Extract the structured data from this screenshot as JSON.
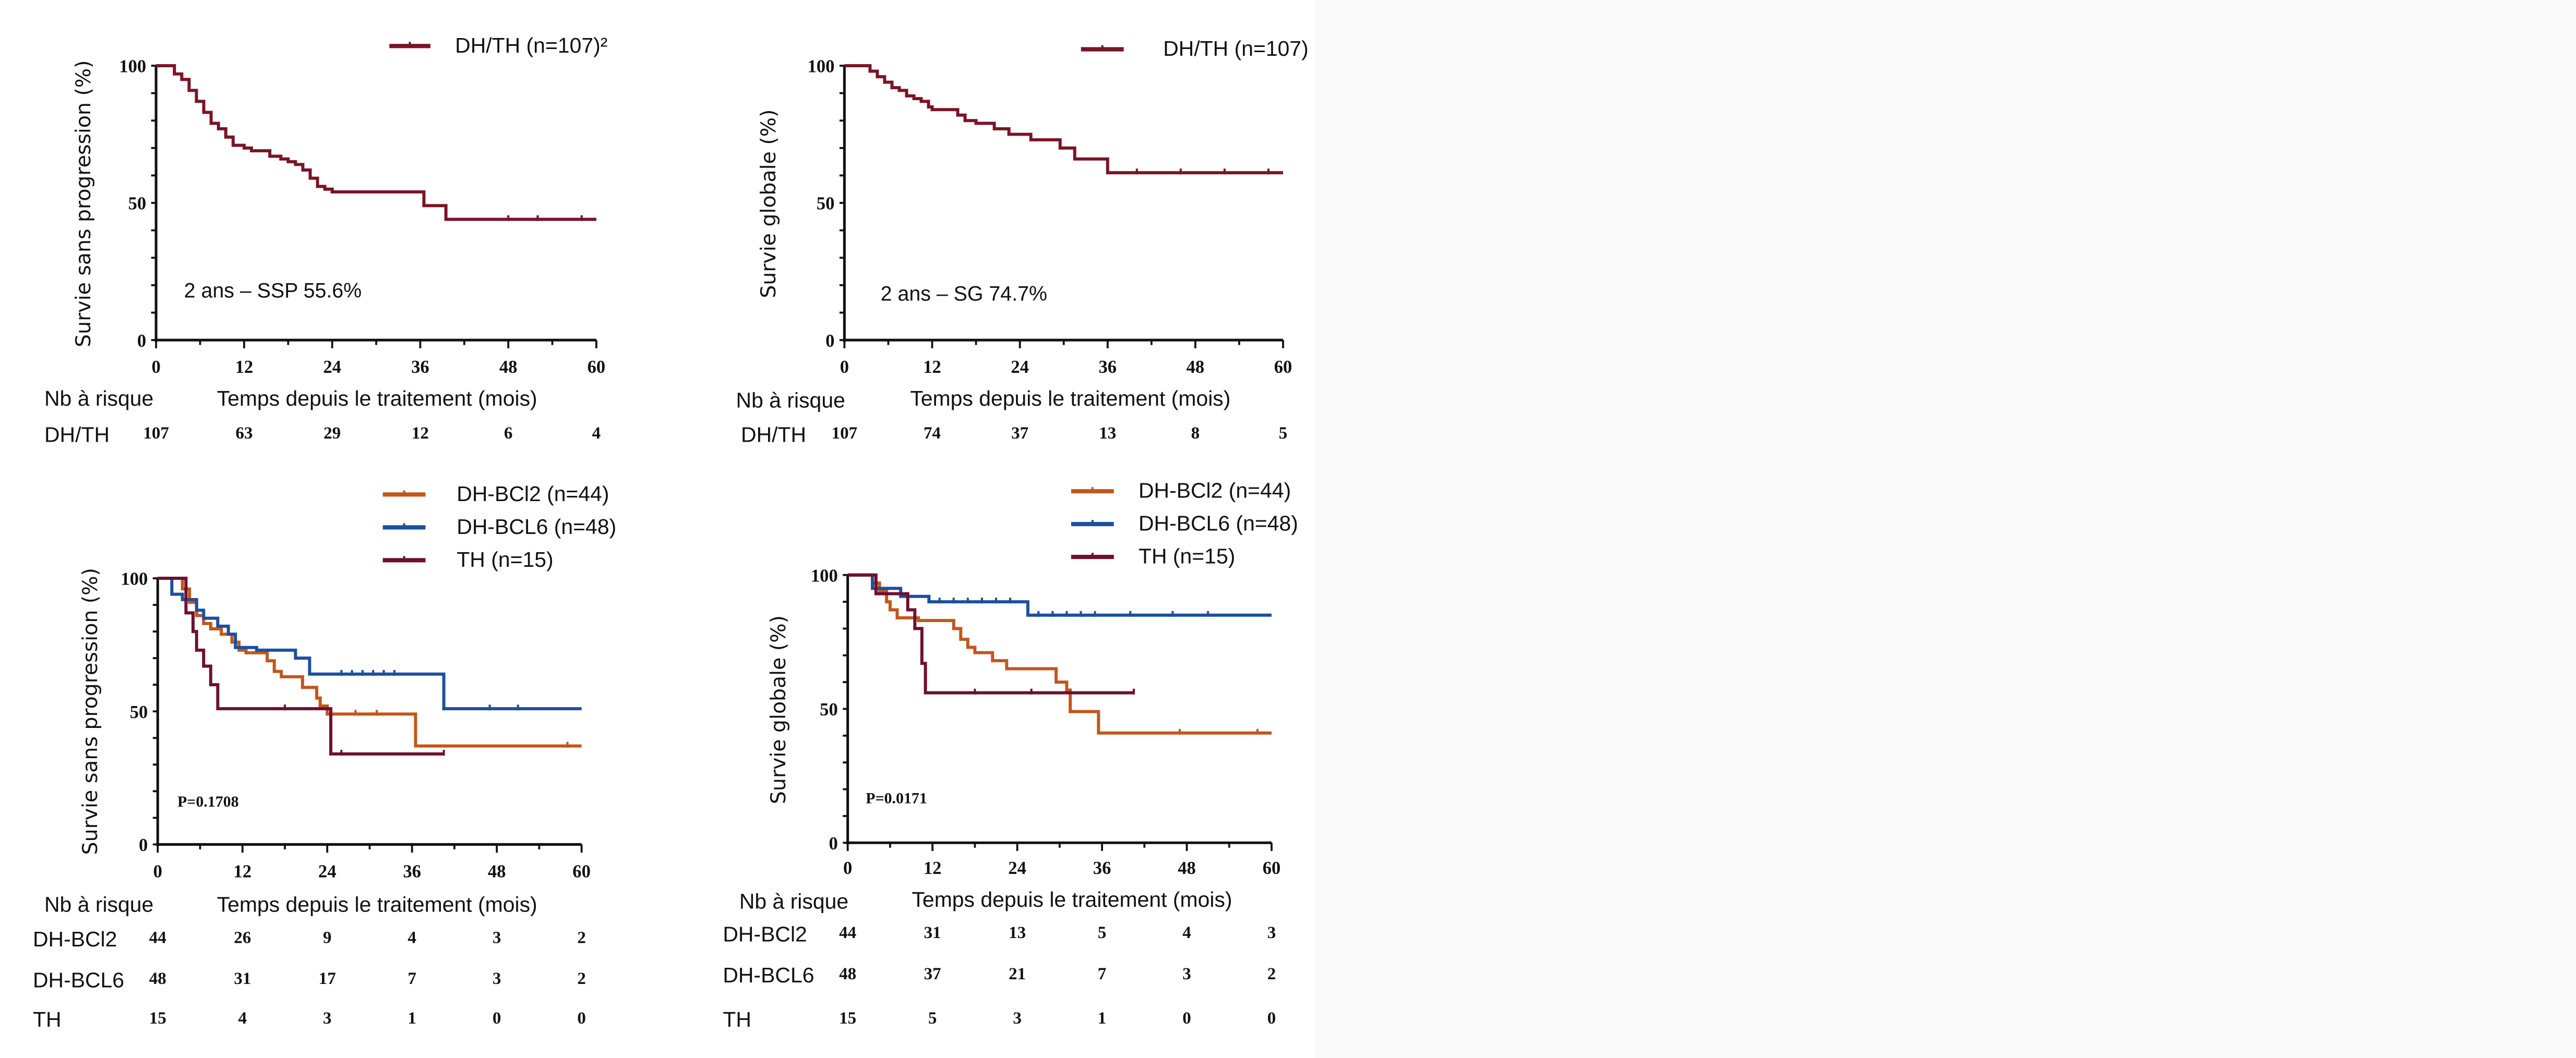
{
  "chart_data": [
    {
      "id": "tl",
      "type": "line",
      "subtype": "kaplan-meier",
      "title": "",
      "ylabel": "Survie sans progression (%)",
      "xlabel": "Temps depuis le traitement (mois)",
      "xlim": [
        0,
        60
      ],
      "ylim": [
        0,
        100
      ],
      "xticks": [
        "0",
        "12",
        "24",
        "36",
        "48",
        "60"
      ],
      "yticks": [
        "0",
        "50",
        "100"
      ],
      "grid": false,
      "legend_position": "top-right",
      "annotation": "2 ans – SSP 55.6%",
      "risk_header": "Nb à risque",
      "series": [
        {
          "name": "DH/TH (n=107)²",
          "risk_label": "DH/TH",
          "color": "#7a1426",
          "at_risk": [
            "107",
            "63",
            "29",
            "12",
            "6",
            "4"
          ],
          "points": [
            [
              0,
              100
            ],
            [
              2,
              100
            ],
            [
              2.5,
              97
            ],
            [
              3.5,
              95
            ],
            [
              4.5,
              91
            ],
            [
              5.5,
              87
            ],
            [
              6.5,
              83
            ],
            [
              7.5,
              79
            ],
            [
              8.5,
              77
            ],
            [
              9.5,
              74
            ],
            [
              10.5,
              71
            ],
            [
              12,
              70
            ],
            [
              13,
              69
            ],
            [
              14.5,
              69
            ],
            [
              15.5,
              67
            ],
            [
              17,
              66
            ],
            [
              18,
              65
            ],
            [
              19,
              64
            ],
            [
              20,
              62
            ],
            [
              21,
              59
            ],
            [
              22,
              56
            ],
            [
              23,
              55
            ],
            [
              24,
              54
            ],
            [
              30,
              54
            ],
            [
              36.5,
              54
            ],
            [
              36.5,
              49
            ],
            [
              39.5,
              49
            ],
            [
              39.5,
              44
            ],
            [
              60,
              44
            ]
          ],
          "censor_marks": [
            48,
            52,
            58
          ]
        }
      ]
    },
    {
      "id": "tr",
      "type": "line",
      "subtype": "kaplan-meier",
      "title": "",
      "ylabel": "Survie globale (%)",
      "xlabel": "Temps depuis le traitement (mois)",
      "xlim": [
        0,
        60
      ],
      "ylim": [
        0,
        100
      ],
      "xticks": [
        "0",
        "12",
        "24",
        "36",
        "48",
        "60"
      ],
      "yticks": [
        "0",
        "50",
        "100"
      ],
      "grid": false,
      "legend_position": "top-right",
      "annotation": "2 ans – SG 74.7%",
      "risk_header": "Nb à risque",
      "series": [
        {
          "name": "DH/TH (n=107)",
          "risk_label": "DH/TH",
          "color": "#7a1426",
          "at_risk": [
            "107",
            "74",
            "37",
            "13",
            "8",
            "5"
          ],
          "points": [
            [
              0,
              100
            ],
            [
              2.5,
              100
            ],
            [
              3.5,
              98
            ],
            [
              4.5,
              96
            ],
            [
              5.5,
              94
            ],
            [
              6.5,
              92
            ],
            [
              7.5,
              91
            ],
            [
              8.5,
              89
            ],
            [
              9.5,
              88
            ],
            [
              10.5,
              87
            ],
            [
              11.5,
              85
            ],
            [
              12,
              84
            ],
            [
              14.5,
              84
            ],
            [
              15.5,
              82
            ],
            [
              16.5,
              80
            ],
            [
              18,
              79
            ],
            [
              20,
              79
            ],
            [
              20.5,
              77
            ],
            [
              22,
              77
            ],
            [
              22.5,
              75
            ],
            [
              25,
              75
            ],
            [
              25.5,
              73
            ],
            [
              29.5,
              73
            ],
            [
              29.5,
              70
            ],
            [
              31,
              70
            ],
            [
              31.5,
              66
            ],
            [
              36,
              66
            ],
            [
              36,
              61
            ],
            [
              60,
              61
            ]
          ],
          "censor_marks": [
            40,
            46,
            52,
            58
          ]
        }
      ]
    },
    {
      "id": "bl",
      "type": "line",
      "subtype": "kaplan-meier",
      "title": "",
      "ylabel": "Survie sans progression (%)",
      "xlabel": "Temps depuis le traitement (mois)",
      "xlim": [
        0,
        60
      ],
      "ylim": [
        0,
        100
      ],
      "xticks": [
        "0",
        "12",
        "24",
        "36",
        "48",
        "60"
      ],
      "yticks": [
        "0",
        "50",
        "100"
      ],
      "grid": false,
      "legend_position": "top-right",
      "annotation": "P=0.1708",
      "risk_header": "Nb à risque",
      "series": [
        {
          "name": "DH-BCl2 (n=44)",
          "risk_label": "DH-BCl2",
          "color": "#c2571a",
          "at_risk": [
            "44",
            "26",
            "9",
            "4",
            "3",
            "2"
          ],
          "points": [
            [
              0,
              100
            ],
            [
              3,
              100
            ],
            [
              3.5,
              96
            ],
            [
              4.5,
              91
            ],
            [
              5.5,
              86
            ],
            [
              6.5,
              83
            ],
            [
              7.5,
              81
            ],
            [
              9,
              79
            ],
            [
              10.5,
              76
            ],
            [
              11.5,
              73
            ],
            [
              12.5,
              72
            ],
            [
              15,
              72
            ],
            [
              15.5,
              69
            ],
            [
              16.5,
              65
            ],
            [
              17.5,
              63
            ],
            [
              20,
              63
            ],
            [
              20.5,
              59
            ],
            [
              22,
              59
            ],
            [
              22.5,
              55
            ],
            [
              23,
              52
            ],
            [
              24,
              49
            ],
            [
              36.5,
              49
            ],
            [
              36.5,
              37
            ],
            [
              60,
              37
            ]
          ],
          "censor_marks": [
            28,
            31,
            58
          ]
        },
        {
          "name": "DH-BCL6 (n=48)",
          "risk_label": "DH-BCL6",
          "color": "#1c4f9e",
          "at_risk": [
            "48",
            "31",
            "17",
            "7",
            "3",
            "2"
          ],
          "points": [
            [
              0,
              100
            ],
            [
              2,
              100
            ],
            [
              2,
              94
            ],
            [
              3.5,
              92
            ],
            [
              4.5,
              92
            ],
            [
              5.5,
              88
            ],
            [
              6.5,
              85
            ],
            [
              8.5,
              82
            ],
            [
              10,
              79
            ],
            [
              11,
              74
            ],
            [
              13,
              74
            ],
            [
              14,
              73
            ],
            [
              19.5,
              73
            ],
            [
              19.5,
              70
            ],
            [
              21.5,
              70
            ],
            [
              21.5,
              64
            ],
            [
              40.5,
              64
            ],
            [
              40.5,
              51
            ],
            [
              60,
              51
            ]
          ],
          "censor_marks": [
            26,
            27.5,
            29,
            30.5,
            32,
            33.5,
            40.5,
            47,
            51
          ]
        },
        {
          "name": "TH (n=15)",
          "risk_label": "TH",
          "color": "#6e1030",
          "at_risk": [
            "15",
            "4",
            "3",
            "1",
            "0",
            "0"
          ],
          "points": [
            [
              0,
              100
            ],
            [
              3.5,
              100
            ],
            [
              4,
              87
            ],
            [
              5,
              80
            ],
            [
              5.5,
              73
            ],
            [
              6.5,
              67
            ],
            [
              7.5,
              60
            ],
            [
              8.5,
              53
            ],
            [
              8.5,
              51
            ],
            [
              24.5,
              51
            ],
            [
              24.5,
              34
            ],
            [
              40.5,
              34
            ]
          ],
          "censor_marks": [
            18,
            26,
            40.5
          ]
        }
      ]
    },
    {
      "id": "br",
      "type": "line",
      "subtype": "kaplan-meier",
      "title": "",
      "ylabel": "Survie globale (%)",
      "xlabel": "Temps depuis le traitement (mois)",
      "xlim": [
        0,
        60
      ],
      "ylim": [
        0,
        100
      ],
      "xticks": [
        "0",
        "12",
        "24",
        "36",
        "48",
        "60"
      ],
      "yticks": [
        "0",
        "50",
        "100"
      ],
      "grid": false,
      "legend_position": "top-right",
      "annotation": "P=0.0171",
      "risk_header": "Nb à risque",
      "series": [
        {
          "name": "DH-BCl2 (n=44)",
          "risk_label": "DH-BCl2",
          "color": "#c2571a",
          "at_risk": [
            "44",
            "31",
            "13",
            "5",
            "4",
            "3"
          ],
          "points": [
            [
              0,
              100
            ],
            [
              3,
              100
            ],
            [
              3.5,
              97
            ],
            [
              4.5,
              94
            ],
            [
              5.5,
              90
            ],
            [
              6,
              87
            ],
            [
              7,
              84
            ],
            [
              9,
              84
            ],
            [
              10,
              83
            ],
            [
              14.5,
              83
            ],
            [
              15,
              80
            ],
            [
              16,
              76
            ],
            [
              17,
              73
            ],
            [
              18,
              71
            ],
            [
              20,
              71
            ],
            [
              20.5,
              68
            ],
            [
              22,
              68
            ],
            [
              22.5,
              65
            ],
            [
              29.5,
              65
            ],
            [
              29.5,
              60
            ],
            [
              31,
              57
            ],
            [
              31.5,
              49
            ],
            [
              35.5,
              49
            ],
            [
              35.5,
              41
            ],
            [
              60,
              41
            ]
          ],
          "censor_marks": [
            47,
            58
          ]
        },
        {
          "name": "DH-BCL6 (n=48)",
          "risk_label": "DH-BCL6",
          "color": "#1c4f9e",
          "at_risk": [
            "48",
            "37",
            "21",
            "7",
            "3",
            "2"
          ],
          "points": [
            [
              0,
              100
            ],
            [
              3,
              100
            ],
            [
              3.5,
              95
            ],
            [
              7,
              95
            ],
            [
              7.5,
              92
            ],
            [
              11,
              92
            ],
            [
              11.5,
              90
            ],
            [
              25.5,
              90
            ],
            [
              25.5,
              85
            ],
            [
              60,
              85
            ]
          ],
          "censor_marks": [
            13,
            15,
            17,
            19,
            21,
            23,
            27,
            29,
            31,
            33,
            35,
            40,
            46,
            51
          ]
        },
        {
          "name": "TH (n=15)",
          "risk_label": "TH",
          "color": "#6e1030",
          "at_risk": [
            "15",
            "5",
            "3",
            "1",
            "0",
            "0"
          ],
          "points": [
            [
              0,
              100
            ],
            [
              4,
              100
            ],
            [
              4,
              93
            ],
            [
              8,
              93
            ],
            [
              8.5,
              87
            ],
            [
              9.5,
              80
            ],
            [
              10.5,
              67
            ],
            [
              11,
              56
            ],
            [
              40.5,
              56
            ]
          ],
          "censor_marks": [
            18,
            26,
            40.5
          ]
        }
      ]
    }
  ]
}
